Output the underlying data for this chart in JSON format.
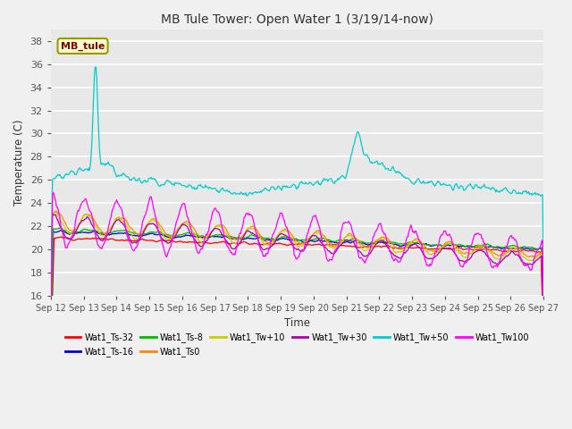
{
  "title": "MB Tule Tower: Open Water 1 (3/19/14-now)",
  "xlabel": "Time",
  "ylabel": "Temperature (C)",
  "ylim": [
    16,
    39
  ],
  "yticks": [
    16,
    18,
    20,
    22,
    24,
    26,
    28,
    30,
    32,
    34,
    36,
    38
  ],
  "xlabels": [
    "Sep 12",
    "Sep 13",
    "Sep 14",
    "Sep 15",
    "Sep 16",
    "Sep 17",
    "Sep 18",
    "Sep 19",
    "Sep 20",
    "Sep 21",
    "Sep 22",
    "Sep 23",
    "Sep 24",
    "Sep 25",
    "Sep 26",
    "Sep 27"
  ],
  "legend_label": "MB_tule",
  "series": [
    {
      "name": "Wat1_Ts-32",
      "color": "#ff0000"
    },
    {
      "name": "Wat1_Ts-16",
      "color": "#0000cc"
    },
    {
      "name": "Wat1_Ts-8",
      "color": "#00bb00"
    },
    {
      "name": "Wat1_Ts0",
      "color": "#ff8800"
    },
    {
      "name": "Wat1_Tw+10",
      "color": "#cccc00"
    },
    {
      "name": "Wat1_Tw+30",
      "color": "#aa00aa"
    },
    {
      "name": "Wat1_Tw+50",
      "color": "#00cccc"
    },
    {
      "name": "Wat1_Tw100",
      "color": "#ff00ff"
    }
  ],
  "background_color": "#f0f0f0",
  "plot_bg_color": "#e8e8e8"
}
